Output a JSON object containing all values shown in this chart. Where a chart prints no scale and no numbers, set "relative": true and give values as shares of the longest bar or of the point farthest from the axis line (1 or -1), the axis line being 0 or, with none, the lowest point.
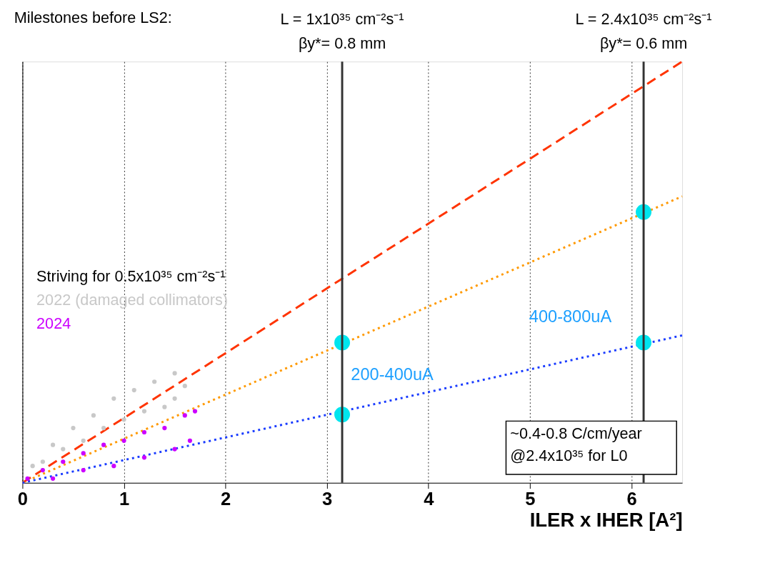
{
  "chart_data": {
    "type": "line",
    "relative": true,
    "xlabel": "ILER x IHER [A²]",
    "xlim": [
      0,
      6.5
    ],
    "xticks": [
      0,
      1,
      2,
      3,
      4,
      5,
      6
    ],
    "grid": "x",
    "legend": "left",
    "tick_labels": "x",
    "series": [
      {
        "type": "scatter",
        "name": "2022 (damaged collimators)",
        "color": "#c8c8c8",
        "marker": "circle",
        "x": [
          0.1,
          0.3,
          0.5,
          0.7,
          0.9,
          1.1,
          1.3,
          1.5,
          1.6,
          0.2,
          0.4,
          0.6,
          0.8,
          1.0,
          1.2,
          1.4,
          1.5
        ],
        "values": [
          0.04,
          0.09,
          0.13,
          0.16,
          0.2,
          0.22,
          0.24,
          0.26,
          0.23,
          0.05,
          0.08,
          0.1,
          0.13,
          0.15,
          0.17,
          0.18,
          0.2
        ]
      },
      {
        "type": "scatter",
        "name": "2024",
        "color": "#cc00ff",
        "marker": "circle",
        "x": [
          0.05,
          0.2,
          0.4,
          0.6,
          0.8,
          1.0,
          1.2,
          1.4,
          1.6,
          1.7,
          0.3,
          0.6,
          0.9,
          1.2,
          1.5,
          1.65
        ],
        "values": [
          0.01,
          0.03,
          0.05,
          0.07,
          0.09,
          0.1,
          0.12,
          0.13,
          0.16,
          0.17,
          0.01,
          0.03,
          0.04,
          0.06,
          0.08,
          0.1
        ]
      },
      {
        "color": "#ff3300",
        "line_style": "dashed",
        "x": [
          0,
          6.5
        ],
        "values": [
          0,
          1
        ]
      },
      {
        "color": "#ff9900",
        "line_style": "dotted",
        "x": [
          0,
          6.5
        ],
        "values": [
          0,
          0.68
        ]
      },
      {
        "color": "#1a3cff",
        "line_style": "dotted",
        "x": [
          0,
          6.5
        ],
        "values": [
          0,
          0.35
        ]
      },
      {
        "type": "scatter",
        "color": "#00e5ee",
        "marker": "circle",
        "x": [
          3.15,
          3.15,
          6.12,
          6.12
        ],
        "values": [
          0.333,
          0.162,
          0.643,
          0.333
        ]
      }
    ],
    "ref_lines": [
      {
        "axis": "x",
        "value": 3.15,
        "color": "#333333"
      },
      {
        "axis": "x",
        "value": 6.12,
        "color": "#333333"
      }
    ],
    "annotations": [
      "Milestones before LS2:",
      "Striving for 0.5x10³⁵ cm⁻²s⁻¹",
      "~0.4-0.8 C/cm/year\n@2.4x10³⁵ for L0",
      "L = 1x10³⁵ cm⁻²s⁻¹\nβy*= 0.8 mm",
      "L = 2.4x10³⁵ cm⁻²s⁻¹\nβy*= 0.6 mm",
      "200-400uA",
      "400-800uA"
    ]
  }
}
